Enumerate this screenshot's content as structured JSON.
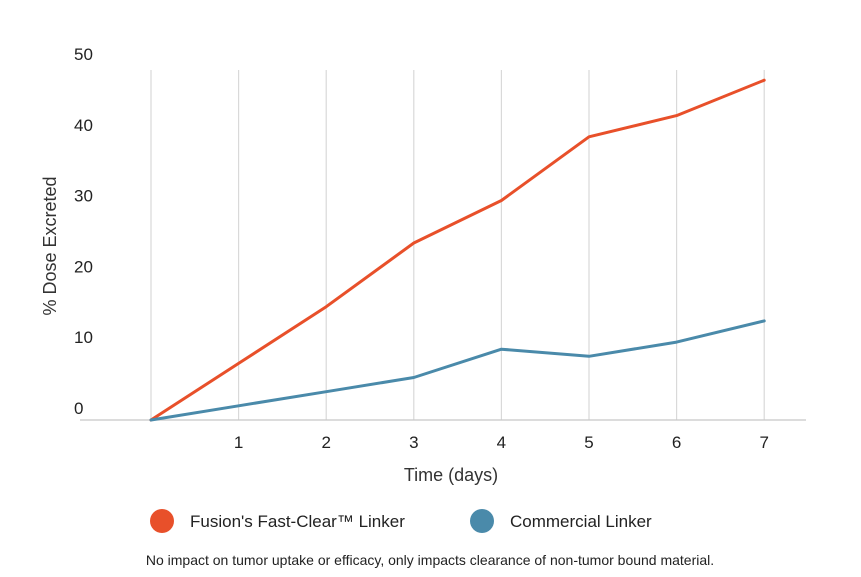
{
  "chart_data": {
    "type": "line",
    "xlabel": "Time (days)",
    "ylabel": "% Dose Excreted",
    "ylim": [
      0,
      50
    ],
    "xlim": [
      0,
      7
    ],
    "x_ticks": [
      1,
      2,
      3,
      4,
      5,
      6,
      7
    ],
    "y_ticks": [
      0,
      10,
      20,
      30,
      40,
      50
    ],
    "grid": "vertical",
    "legend_position": "bottom",
    "series": [
      {
        "name": "Fusion's Fast-Clear™ Linker",
        "color": "#e8502a",
        "x": [
          0,
          1,
          2,
          3,
          4,
          5,
          6,
          7
        ],
        "values": [
          0,
          8,
          16,
          25,
          31,
          40,
          43,
          48
        ]
      },
      {
        "name": "Commercial Linker",
        "color": "#4a8aaa",
        "x": [
          0,
          1,
          2,
          3,
          4,
          5,
          6,
          7
        ],
        "values": [
          0,
          2,
          4,
          6,
          10,
          9,
          11,
          14
        ]
      }
    ],
    "footnote": "No impact on tumor uptake or efficacy, only impacts clearance of non-tumor bound material."
  }
}
